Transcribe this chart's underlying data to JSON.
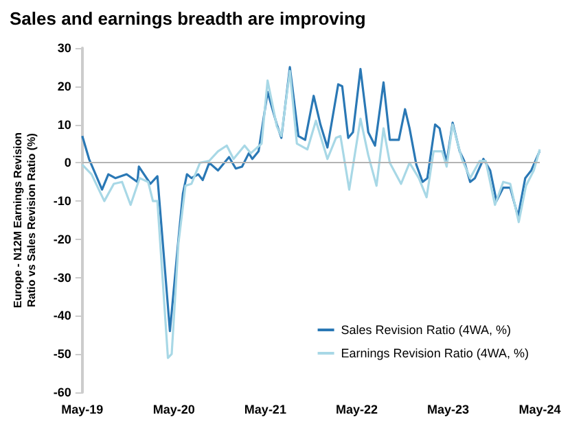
{
  "chart_data": {
    "type": "line",
    "title": "Sales and earnings breadth are improving",
    "ylabel": "Europe - N12M Earnings Revision Ratio vs Sales Revision Ratio (%)",
    "xlim": [
      "2019-05-01",
      "2024-05-01"
    ],
    "xticks": [
      {
        "value": "2019-05-01",
        "label": "May-19"
      },
      {
        "value": "2020-05-01",
        "label": "May-20"
      },
      {
        "value": "2021-05-01",
        "label": "May-21"
      },
      {
        "value": "2022-05-01",
        "label": "May-22"
      },
      {
        "value": "2023-05-01",
        "label": "May-23"
      },
      {
        "value": "2024-05-01",
        "label": "May-24"
      }
    ],
    "ylim": [
      -60,
      30
    ],
    "yticks": [
      -60,
      -50,
      -40,
      -30,
      -20,
      -10,
      0,
      10,
      20,
      30
    ],
    "ref_lines": [
      {
        "axis": "y",
        "value": 0,
        "color": "#b3b3b3"
      }
    ],
    "legend": "bottom right",
    "marker": "none",
    "line_style": "solid",
    "series": [
      {
        "name": "Sales Revision Ratio (4WA, %)",
        "color": "#2a78b5",
        "x": [
          "2019-05-01",
          "2019-05-28",
          "2019-07-19",
          "2019-08-13",
          "2019-09-10",
          "2019-10-25",
          "2019-12-07",
          "2019-12-13",
          "2020-01-28",
          "2020-02-25",
          "2020-04-15",
          "2020-05-19",
          "2020-06-06",
          "2020-06-22",
          "2020-07-10",
          "2020-08-06",
          "2020-08-24",
          "2020-09-19",
          "2020-10-24",
          "2020-12-07",
          "2021-01-03",
          "2021-01-28",
          "2021-02-24",
          "2021-03-10",
          "2021-04-04",
          "2021-05-10",
          "2021-06-16",
          "2021-07-04",
          "2021-08-07",
          "2021-09-10",
          "2021-10-07",
          "2021-11-10",
          "2021-12-07",
          "2022-01-04",
          "2022-02-16",
          "2022-03-04",
          "2022-03-28",
          "2022-04-16",
          "2022-05-16",
          "2022-06-16",
          "2022-07-13",
          "2022-08-16",
          "2022-09-10",
          "2022-10-16",
          "2022-11-10",
          "2022-11-28",
          "2022-12-25",
          "2023-01-19",
          "2023-02-07",
          "2023-03-10",
          "2023-03-28",
          "2023-04-25",
          "2023-05-19",
          "2023-06-16",
          "2023-07-04",
          "2023-07-28",
          "2023-08-16",
          "2023-09-19",
          "2023-10-16",
          "2023-11-10",
          "2023-12-07",
          "2024-01-04",
          "2024-02-04",
          "2024-03-04",
          "2024-03-28",
          "2024-04-30"
        ],
        "values": [
          7,
          1,
          -7,
          -3,
          -4,
          -3,
          -5,
          -1,
          -5.5,
          -3.5,
          -44,
          -20,
          -8,
          -3,
          -4,
          -3,
          -4.5,
          0,
          -2,
          1.5,
          -1.5,
          -1,
          2.5,
          1,
          3,
          18.5,
          10,
          6.5,
          25,
          7,
          6,
          17.5,
          10,
          4,
          20.5,
          20,
          6.5,
          8,
          24.5,
          8,
          4.5,
          21,
          6,
          6,
          14,
          9,
          -0.5,
          -5,
          -4,
          10,
          9,
          0,
          10.5,
          3,
          0.5,
          -5,
          -4,
          1,
          -2,
          -10,
          -6.5,
          -6.5,
          -14,
          -4,
          -2,
          3
        ]
      },
      {
        "name": "Earnings Revision Ratio (4WA, %)",
        "color": "#a8d8e6",
        "x": [
          "2019-05-01",
          "2019-06-07",
          "2019-07-28",
          "2019-09-04",
          "2019-10-07",
          "2019-11-10",
          "2019-12-16",
          "2020-01-19",
          "2020-02-07",
          "2020-02-25",
          "2020-04-07",
          "2020-04-22",
          "2020-05-19",
          "2020-06-16",
          "2020-07-10",
          "2020-08-13",
          "2020-09-19",
          "2020-10-24",
          "2020-11-28",
          "2020-12-25",
          "2021-02-07",
          "2021-03-04",
          "2021-04-16",
          "2021-05-10",
          "2021-06-16",
          "2021-07-04",
          "2021-08-07",
          "2021-09-04",
          "2021-10-16",
          "2021-11-19",
          "2022-01-04",
          "2022-02-07",
          "2022-02-25",
          "2022-04-01",
          "2022-05-16",
          "2022-06-16",
          "2022-07-19",
          "2022-08-16",
          "2022-09-10",
          "2022-10-25",
          "2022-11-28",
          "2023-01-04",
          "2023-02-04",
          "2023-03-04",
          "2023-04-07",
          "2023-04-25",
          "2023-05-19",
          "2023-06-25",
          "2023-07-28",
          "2023-09-04",
          "2023-09-28",
          "2023-11-04",
          "2023-12-07",
          "2024-01-04",
          "2024-02-07",
          "2024-03-07",
          "2024-04-07",
          "2024-05-01"
        ],
        "values": [
          -0.5,
          -3,
          -10,
          -5.5,
          -5,
          -11,
          -4,
          -5,
          -10,
          -10,
          -51,
          -50,
          -21,
          -6,
          -5.5,
          0,
          0.5,
          3,
          4.5,
          1,
          4.5,
          2.5,
          5,
          21.5,
          9.5,
          7,
          24,
          5,
          3.5,
          11,
          1,
          6.5,
          7,
          -7,
          11.5,
          2,
          -6,
          9,
          0,
          -5.5,
          0,
          -4,
          -9,
          3,
          3,
          -1,
          10,
          1,
          -4,
          0.5,
          0.5,
          -11,
          -5,
          -5.5,
          -15.5,
          -6,
          -2,
          3.5
        ]
      }
    ]
  }
}
